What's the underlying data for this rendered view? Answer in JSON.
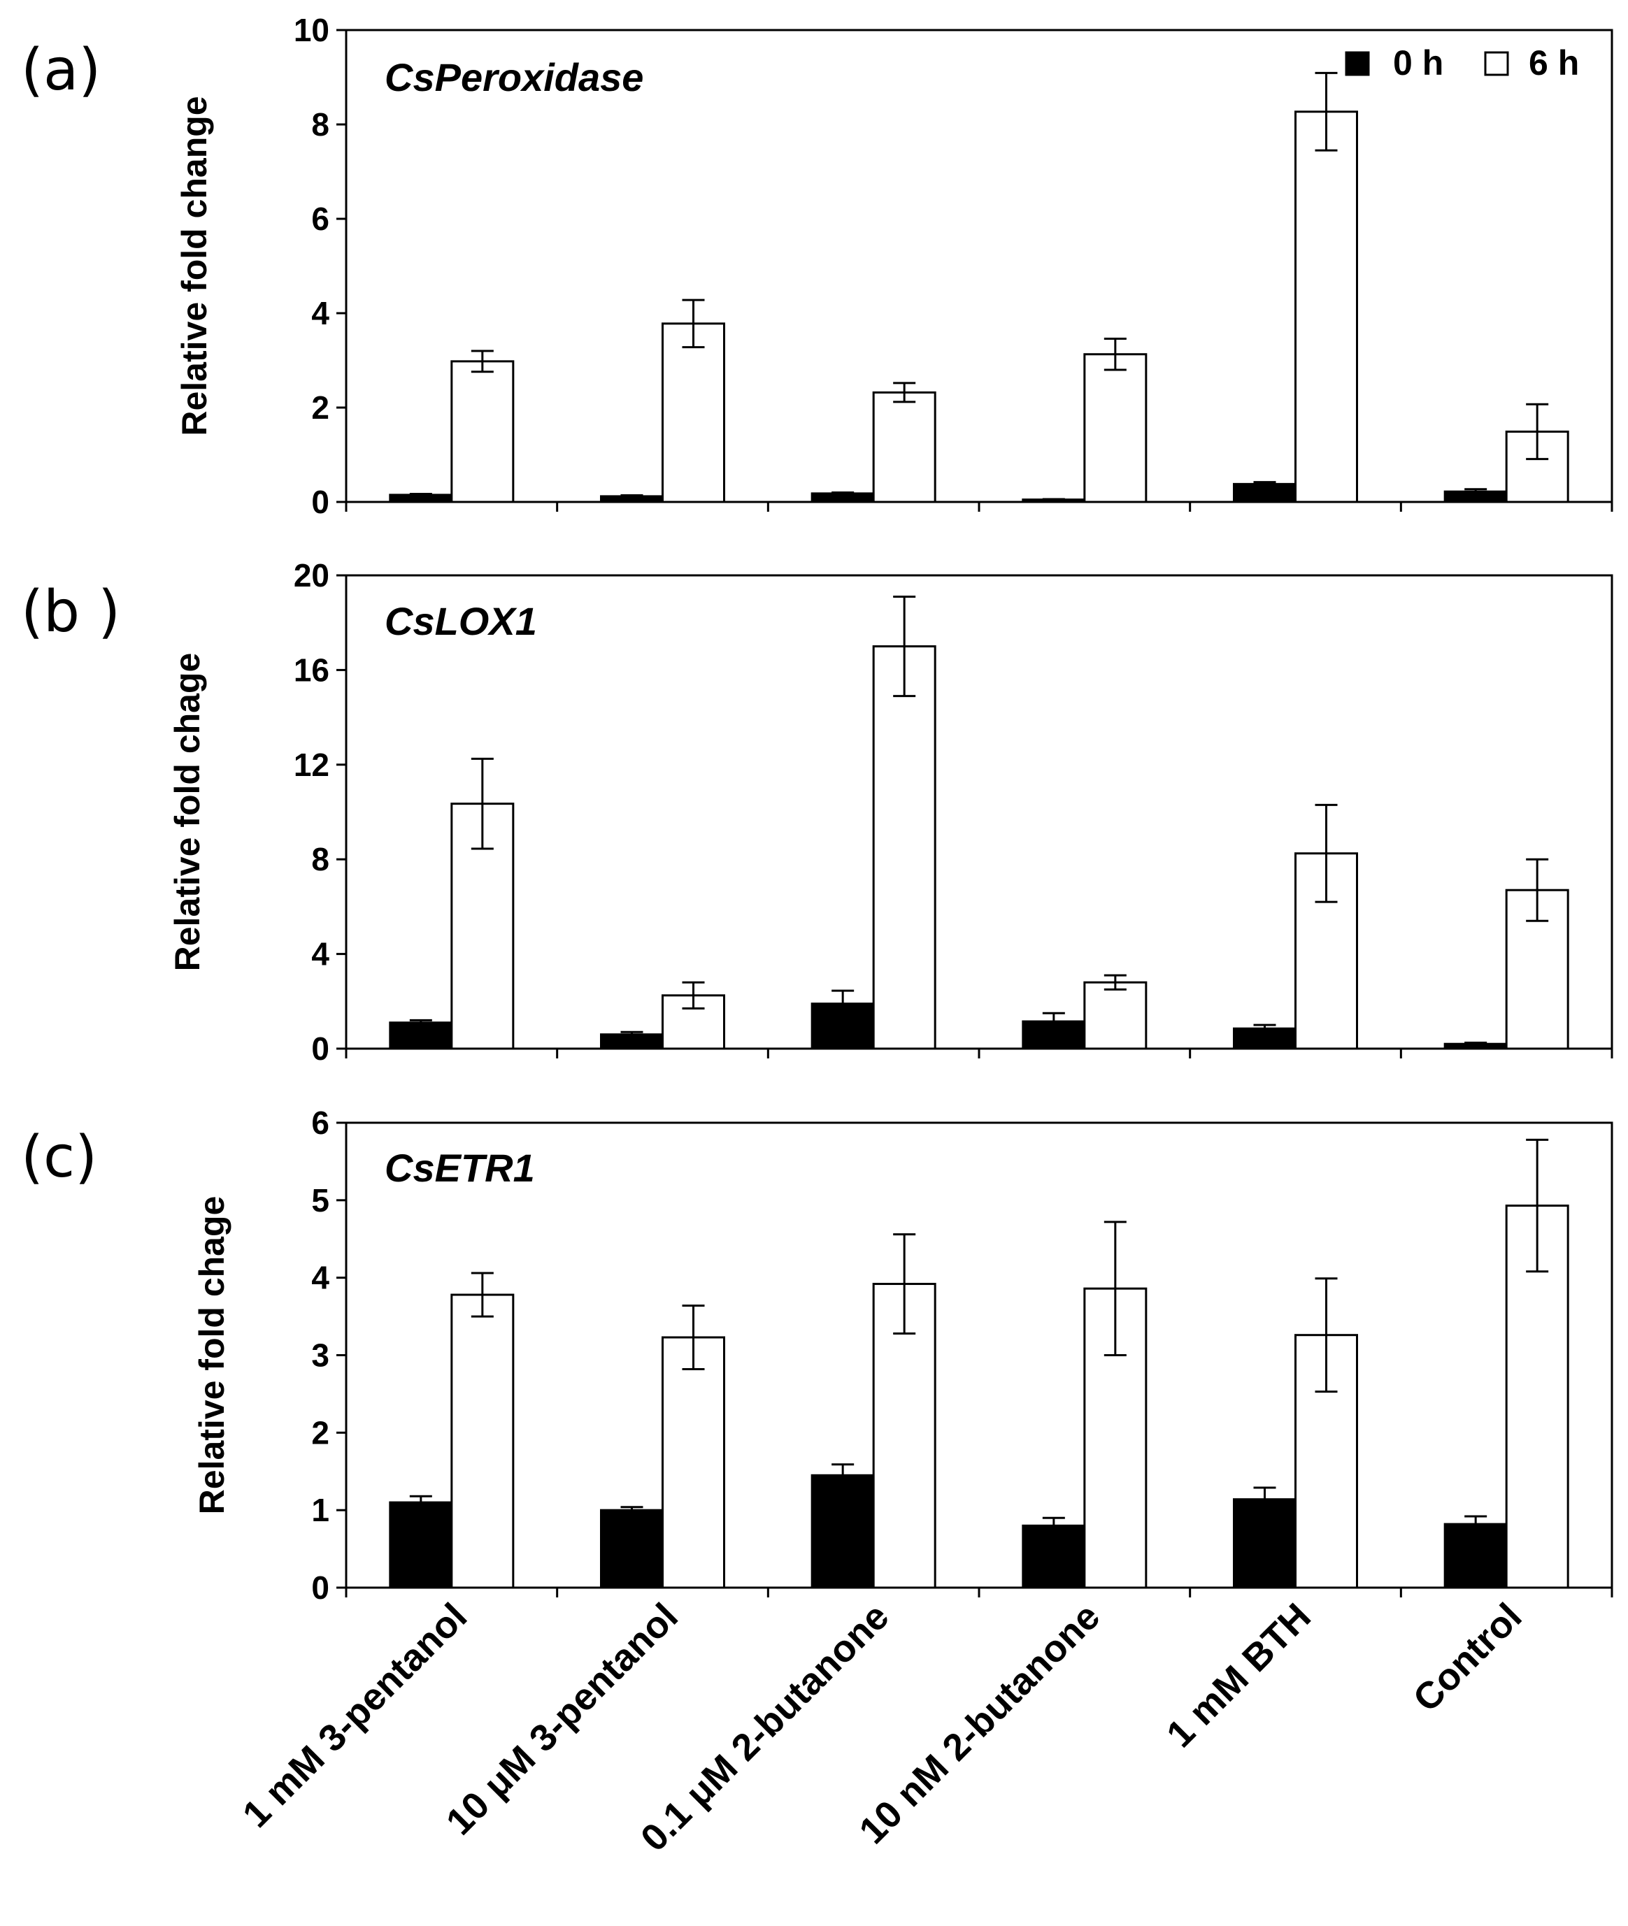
{
  "figure": {
    "categories": [
      "1 mM 3-pentanol",
      "10 μM 3-pentanol",
      "0.1 μM 2-butanone",
      "10 nM 2-butanone",
      "1 mM BTH",
      "Control"
    ],
    "legend": [
      {
        "label": "0 h",
        "color": "#000000"
      },
      {
        "label": "6 h",
        "color": "#ffffff"
      }
    ]
  },
  "chart_data": [
    {
      "type": "bar",
      "panel_letter": "(a)",
      "title": "CsPeroxidase",
      "xlabel": "",
      "ylabel": "Relative fold change",
      "ylim": [
        0,
        10
      ],
      "yticks": [
        0,
        2,
        4,
        6,
        8,
        10
      ],
      "legend_position": "top-right",
      "grid": false,
      "categories": [
        "1 mM 3-pentanol",
        "10 μM 3-pentanol",
        "0.1 μM 2-butanone",
        "10 nM 2-butanone",
        "1 mM BTH",
        "Control"
      ],
      "series": [
        {
          "name": "0 h",
          "color": "#000000",
          "values": [
            0.15,
            0.12,
            0.18,
            0.05,
            0.38,
            0.22
          ],
          "errors": [
            0.02,
            0.02,
            0.02,
            0.01,
            0.04,
            0.05
          ]
        },
        {
          "name": "6 h",
          "color": "#ffffff",
          "values": [
            2.98,
            3.78,
            2.32,
            3.13,
            8.27,
            1.49
          ],
          "errors": [
            0.22,
            0.5,
            0.2,
            0.33,
            0.82,
            0.58
          ]
        }
      ]
    },
    {
      "type": "bar",
      "panel_letter": "(b )",
      "title": "CsLOX1",
      "xlabel": "",
      "ylabel": "Relative fold chage",
      "ylim": [
        0,
        20
      ],
      "yticks": [
        0,
        4,
        8,
        12,
        16,
        20
      ],
      "legend_position": "none",
      "grid": false,
      "categories": [
        "1 mM 3-pentanol",
        "10 μM 3-pentanol",
        "0.1 μM 2-butanone",
        "10 nM 2-butanone",
        "1 mM BTH",
        "Control"
      ],
      "series": [
        {
          "name": "0 h",
          "color": "#000000",
          "values": [
            1.1,
            0.6,
            1.9,
            1.15,
            0.85,
            0.2
          ],
          "errors": [
            0.1,
            0.1,
            0.55,
            0.35,
            0.15,
            0.05
          ]
        },
        {
          "name": "6 h",
          "color": "#ffffff",
          "values": [
            10.35,
            2.25,
            17.0,
            2.8,
            8.25,
            6.7
          ],
          "errors": [
            1.9,
            0.55,
            2.1,
            0.3,
            2.05,
            1.3
          ]
        }
      ]
    },
    {
      "type": "bar",
      "panel_letter": "(c)",
      "title": "CsETR1",
      "xlabel": "",
      "ylabel": "Relative fold chage",
      "ylim": [
        0,
        6
      ],
      "yticks": [
        0,
        1,
        2,
        3,
        4,
        5,
        6
      ],
      "legend_position": "none",
      "grid": false,
      "categories": [
        "1 mM 3-pentanol",
        "10 μM 3-pentanol",
        "0.1 μM 2-butanone",
        "10 nM 2-butanone",
        "1 mM BTH",
        "Control"
      ],
      "series": [
        {
          "name": "0 h",
          "color": "#000000",
          "values": [
            1.1,
            1.0,
            1.45,
            0.8,
            1.14,
            0.82
          ],
          "errors": [
            0.08,
            0.04,
            0.14,
            0.1,
            0.15,
            0.1
          ]
        },
        {
          "name": "6 h",
          "color": "#ffffff",
          "values": [
            3.78,
            3.23,
            3.92,
            3.86,
            3.26,
            4.93
          ],
          "errors": [
            0.28,
            0.41,
            0.64,
            0.86,
            0.73,
            0.85
          ]
        }
      ]
    }
  ]
}
